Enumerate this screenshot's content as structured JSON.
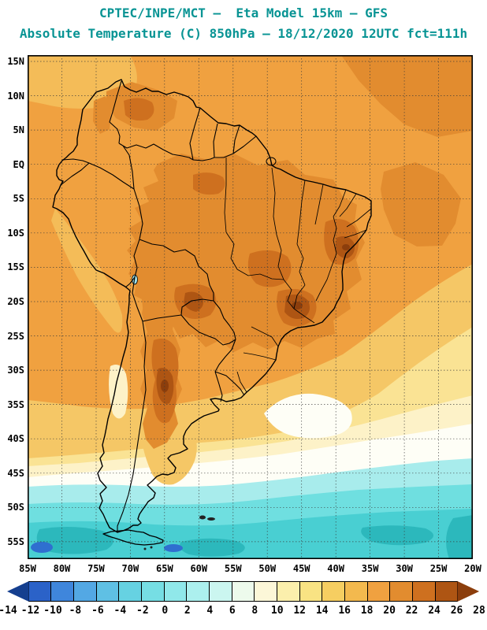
{
  "header": {
    "line1": "CPTEC/INPE/MCT –  Eta Model 15km – GFS",
    "line2": "Absolute Temperature (C) 850hPa – 18/12/2020 12UTC fct=111h"
  },
  "map": {
    "lat_labels": [
      "15N",
      "10N",
      "5N",
      "EQ",
      "5S",
      "10S",
      "15S",
      "20S",
      "25S",
      "30S",
      "35S",
      "40S",
      "45S",
      "50S",
      "55S"
    ],
    "lon_labels": [
      "85W",
      "80W",
      "75W",
      "70W",
      "65W",
      "60W",
      "55W",
      "50W",
      "45W",
      "40W",
      "35W",
      "30W",
      "25W",
      "20W"
    ]
  },
  "colorbar": {
    "tick_values": [
      "-14",
      "-12",
      "-10",
      "-8",
      "-6",
      "-4",
      "-2",
      "0",
      "2",
      "4",
      "6",
      "8",
      "10",
      "12",
      "14",
      "16",
      "18",
      "20",
      "22",
      "24",
      "26",
      "28"
    ],
    "colors": [
      "#153F8F",
      "#2B62C8",
      "#3F86DC",
      "#53A8E4",
      "#5FC0E4",
      "#66D2E2",
      "#76DEE4",
      "#90E8EA",
      "#ACF0EE",
      "#CBF6F0",
      "#EDFAEC",
      "#FCF7D8",
      "#FBEFAC",
      "#F9E383",
      "#F6CE61",
      "#F3B94E",
      "#F0A140",
      "#E28C2F",
      "#CE701F",
      "#AE5513",
      "#8C3E0C"
    ]
  },
  "theme": {
    "title_color": "#089494",
    "label_color": "#000000",
    "grid_color": "#3a3a3a",
    "background": "#FFFFFF"
  }
}
